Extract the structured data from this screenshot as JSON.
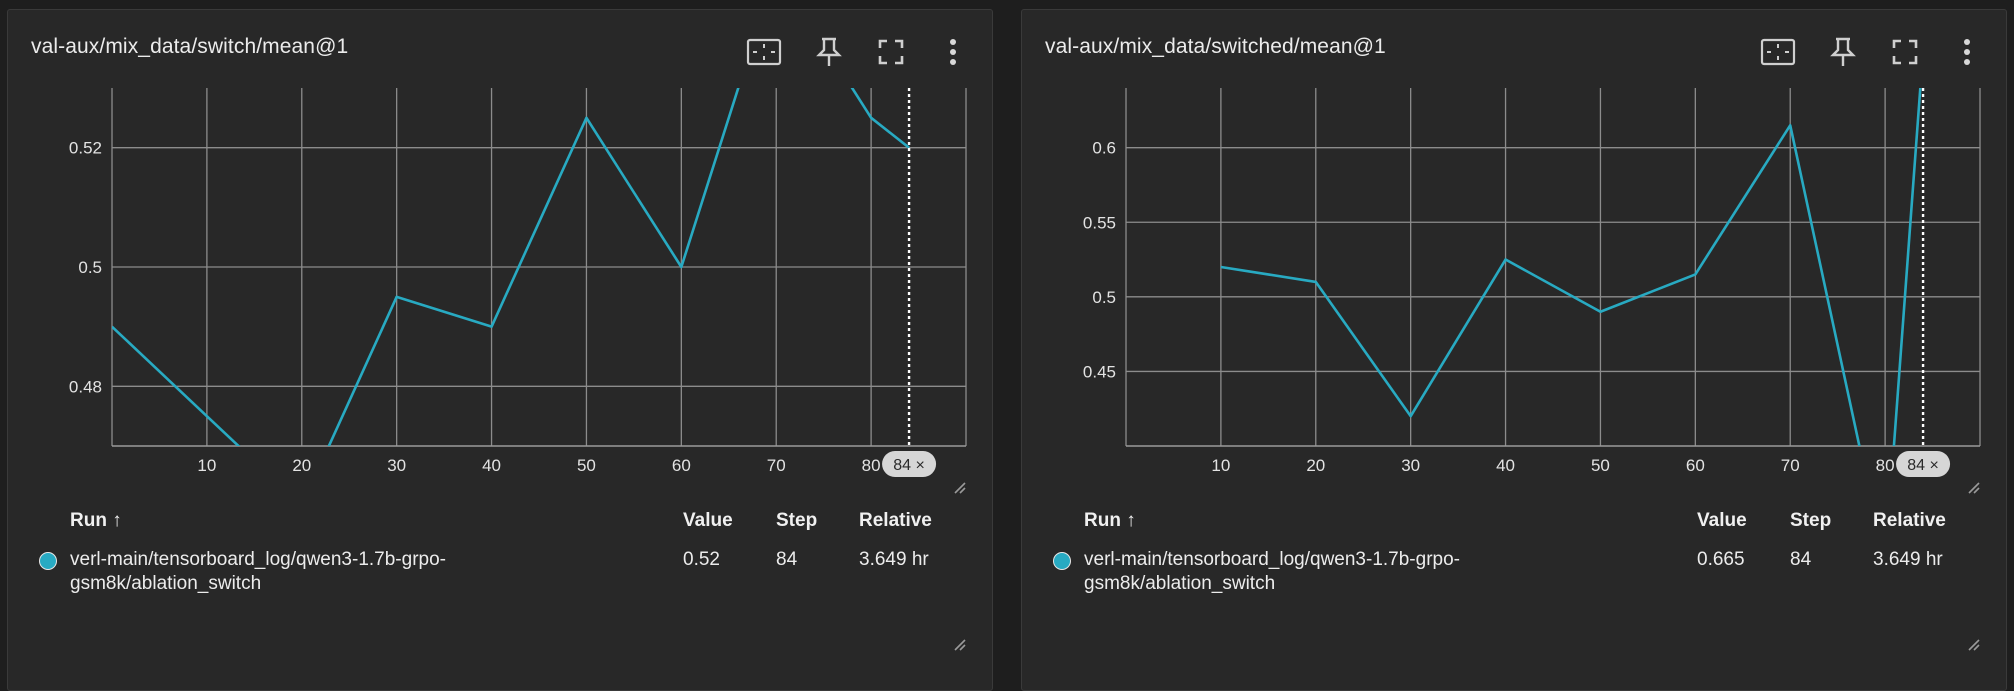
{
  "colors": {
    "background": "#1e1e1e",
    "card": "#282828",
    "grid": "#8c8c8c",
    "series": "#28aac2",
    "text": "#e8e8e8"
  },
  "cards": [
    {
      "title": "val-aux/mix_data/switch/mean@1",
      "icons": [
        "fit-domain-icon",
        "pin-icon",
        "fullscreen-icon",
        "more-vert-icon"
      ],
      "chart_data": {
        "type": "line",
        "title": "val-aux/mix_data/switch/mean@1",
        "xlabel": "",
        "ylabel": "",
        "xlim": [
          0,
          90
        ],
        "ylim": [
          0.47,
          0.53
        ],
        "x_ticks": [
          "10",
          "20",
          "30",
          "40",
          "50",
          "60",
          "70",
          "80"
        ],
        "y_ticks": [
          "0.48",
          "0.5",
          "0.52"
        ],
        "grid": true,
        "series": [
          {
            "color": "#28aac2",
            "x": [
              0,
              10,
              20,
              30,
              40,
              50,
              60,
              70,
              80,
              84
            ],
            "y": [
              0.49,
              0.475,
              0.46,
              0.495,
              0.49,
              0.525,
              0.5,
              0.55,
              0.525,
              0.52
            ]
          }
        ],
        "cursor_step": 84,
        "cursor_label": "84 ×"
      },
      "table": {
        "headers": {
          "run": "Run ↑",
          "value": "Value",
          "step": "Step",
          "relative": "Relative"
        },
        "rows": [
          {
            "color": "#28aac2",
            "run": "verl-main/tensorboard_log/qwen3-1.7b-grpo-gsm8k/ablation_switch",
            "value": "0.52",
            "step": "84",
            "relative": "3.649 hr"
          }
        ]
      }
    },
    {
      "title": "val-aux/mix_data/switched/mean@1",
      "icons": [
        "fit-domain-icon",
        "pin-icon",
        "fullscreen-icon",
        "more-vert-icon"
      ],
      "chart_data": {
        "type": "line",
        "title": "val-aux/mix_data/switched/mean@1",
        "xlabel": "",
        "ylabel": "",
        "xlim": [
          0,
          90
        ],
        "ylim": [
          0.4,
          0.64
        ],
        "x_ticks": [
          "10",
          "20",
          "30",
          "40",
          "50",
          "60",
          "70",
          "80"
        ],
        "y_ticks": [
          "0.45",
          "0.5",
          "0.55",
          "0.6"
        ],
        "grid": true,
        "series": [
          {
            "color": "#28aac2",
            "x": [
              10,
              20,
              30,
              40,
              50,
              60,
              70,
              80,
              84
            ],
            "y": [
              0.52,
              0.51,
              0.42,
              0.525,
              0.49,
              0.515,
              0.615,
              0.32,
              0.665
            ]
          }
        ],
        "cursor_step": 84,
        "cursor_label": "84 ×"
      },
      "table": {
        "headers": {
          "run": "Run ↑",
          "value": "Value",
          "step": "Step",
          "relative": "Relative"
        },
        "rows": [
          {
            "color": "#28aac2",
            "run": "verl-main/tensorboard_log/qwen3-1.7b-grpo-gsm8k/ablation_switch",
            "value": "0.665",
            "step": "84",
            "relative": "3.649 hr"
          }
        ]
      }
    }
  ]
}
